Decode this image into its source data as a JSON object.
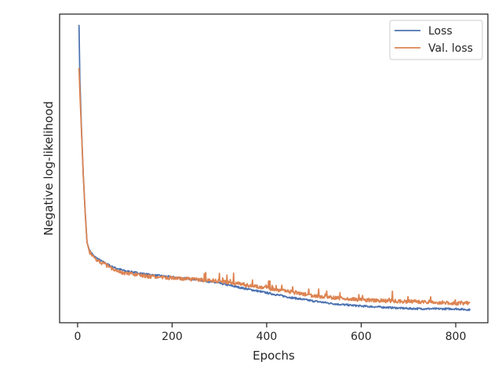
{
  "chart_data": {
    "type": "line",
    "title": "",
    "xlabel": "Epochs",
    "ylabel": "Negative log-likelihood",
    "xlim": [
      -38,
      868
    ],
    "ylim": [
      0,
      1
    ],
    "x_ticks": [
      0,
      200,
      400,
      600,
      800
    ],
    "y_ticks": [],
    "grid": false,
    "legend_position": "top-right",
    "series": [
      {
        "name": "Loss",
        "color": "#4c72b0",
        "points": [
          [
            3,
            0.965
          ],
          [
            5,
            0.78
          ],
          [
            8,
            0.64
          ],
          [
            12,
            0.48
          ],
          [
            16,
            0.36
          ],
          [
            20,
            0.26
          ],
          [
            25,
            0.235
          ],
          [
            35,
            0.215
          ],
          [
            50,
            0.2
          ],
          [
            75,
            0.18
          ],
          [
            100,
            0.168
          ],
          [
            150,
            0.156
          ],
          [
            200,
            0.148
          ],
          [
            250,
            0.14
          ],
          [
            300,
            0.128
          ],
          [
            350,
            0.112
          ],
          [
            400,
            0.097
          ],
          [
            450,
            0.082
          ],
          [
            500,
            0.07
          ],
          [
            550,
            0.06
          ],
          [
            600,
            0.054
          ],
          [
            650,
            0.05
          ],
          [
            700,
            0.046
          ],
          [
            750,
            0.045
          ],
          [
            800,
            0.045
          ],
          [
            830,
            0.042
          ]
        ],
        "noise": 0.003
      },
      {
        "name": "Val. loss",
        "color": "#dd8452",
        "points": [
          [
            3,
            0.825
          ],
          [
            5,
            0.74
          ],
          [
            8,
            0.63
          ],
          [
            12,
            0.48
          ],
          [
            16,
            0.36
          ],
          [
            20,
            0.26
          ],
          [
            25,
            0.23
          ],
          [
            35,
            0.21
          ],
          [
            50,
            0.195
          ],
          [
            75,
            0.175
          ],
          [
            100,
            0.16
          ],
          [
            150,
            0.15
          ],
          [
            200,
            0.145
          ],
          [
            250,
            0.14
          ],
          [
            300,
            0.135
          ],
          [
            350,
            0.124
          ],
          [
            400,
            0.113
          ],
          [
            450,
            0.1
          ],
          [
            500,
            0.087
          ],
          [
            550,
            0.08
          ],
          [
            600,
            0.074
          ],
          [
            650,
            0.071
          ],
          [
            700,
            0.069
          ],
          [
            750,
            0.067
          ],
          [
            800,
            0.063
          ],
          [
            830,
            0.063
          ]
        ],
        "noise": 0.006
      }
    ]
  }
}
